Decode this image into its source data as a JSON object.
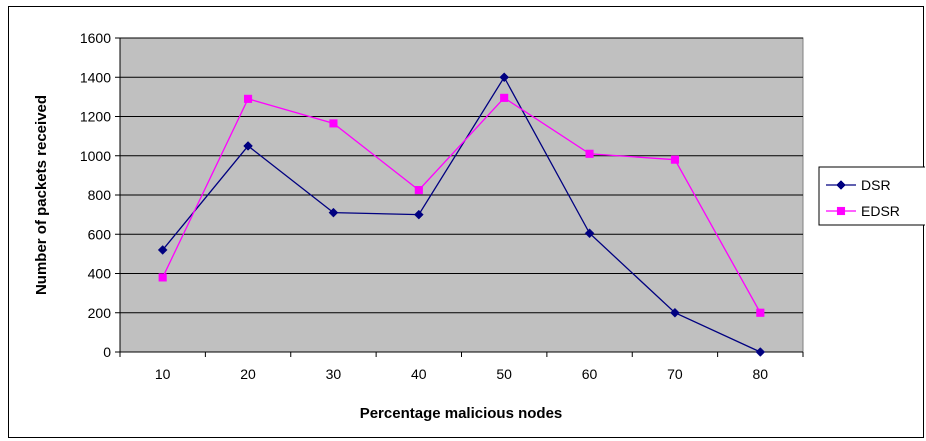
{
  "chart_data": {
    "type": "line",
    "categories": [
      "10",
      "20",
      "30",
      "40",
      "50",
      "60",
      "70",
      "80"
    ],
    "series": [
      {
        "name": "DSR",
        "values": [
          520,
          1050,
          710,
          700,
          1400,
          605,
          200,
          0
        ],
        "color": "#000080",
        "marker": "diamond"
      },
      {
        "name": "EDSR",
        "values": [
          380,
          1290,
          1165,
          825,
          1295,
          1010,
          980,
          200
        ],
        "color": "#FF00FF",
        "marker": "square"
      }
    ],
    "xlabel": "Percentage malicious nodes",
    "ylabel": "Number of packets received",
    "ylim": [
      0,
      1600
    ],
    "yticks": [
      "0",
      "200",
      "400",
      "600",
      "800",
      "1000",
      "1200",
      "1400",
      "1600"
    ],
    "grid": true,
    "plot_background": "#C0C0C0",
    "legend_position": "right"
  }
}
